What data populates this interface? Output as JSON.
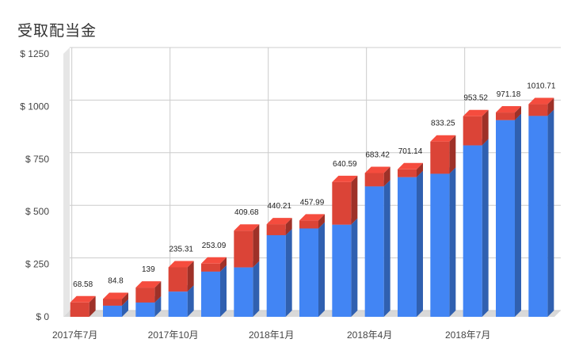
{
  "chart_data": {
    "type": "bar",
    "stacked": true,
    "style": "3d",
    "title": "受取配当金",
    "xlabel": "",
    "ylabel": "",
    "ylim": [
      0,
      1250
    ],
    "yticks": [
      0,
      250,
      500,
      750,
      1000,
      1250
    ],
    "ytick_labels": [
      "$ 0",
      "$ 250",
      "$ 500",
      "$ 750",
      "$ 1000",
      "$ 1250"
    ],
    "x_tick_labels": [
      {
        "index": 0,
        "label": "2017年7月"
      },
      {
        "index": 3,
        "label": "2017年10月"
      },
      {
        "index": 6,
        "label": "2018年1月"
      },
      {
        "index": 9,
        "label": "2018年4月"
      },
      {
        "index": 12,
        "label": "2018年7月"
      }
    ],
    "grid": true,
    "series": [
      {
        "color": "#4285f4",
        "values": [
          0,
          53,
          68,
          120,
          215,
          235,
          388,
          420,
          438,
          620,
          664,
          680,
          815,
          935,
          955
        ]
      },
      {
        "color": "#db4437",
        "values": [
          68.58,
          31.8,
          71,
          115.31,
          38.09,
          174.68,
          52.21,
          37.99,
          202.59,
          63.42,
          37.14,
          153.25,
          138.52,
          36.18,
          55.71
        ]
      }
    ],
    "totals": [
      68.58,
      84.8,
      139,
      235.31,
      253.09,
      409.68,
      440.21,
      457.99,
      640.59,
      683.42,
      701.14,
      833.25,
      953.52,
      971.18,
      1010.71
    ],
    "total_labels": [
      "68.58",
      "84.8",
      "139",
      "235.31",
      "253.09",
      "409.68",
      "440.21",
      "457.99",
      "640.59",
      "683.42",
      "701.14",
      "833.25",
      "953.52",
      "971.18",
      "1010.71"
    ]
  }
}
